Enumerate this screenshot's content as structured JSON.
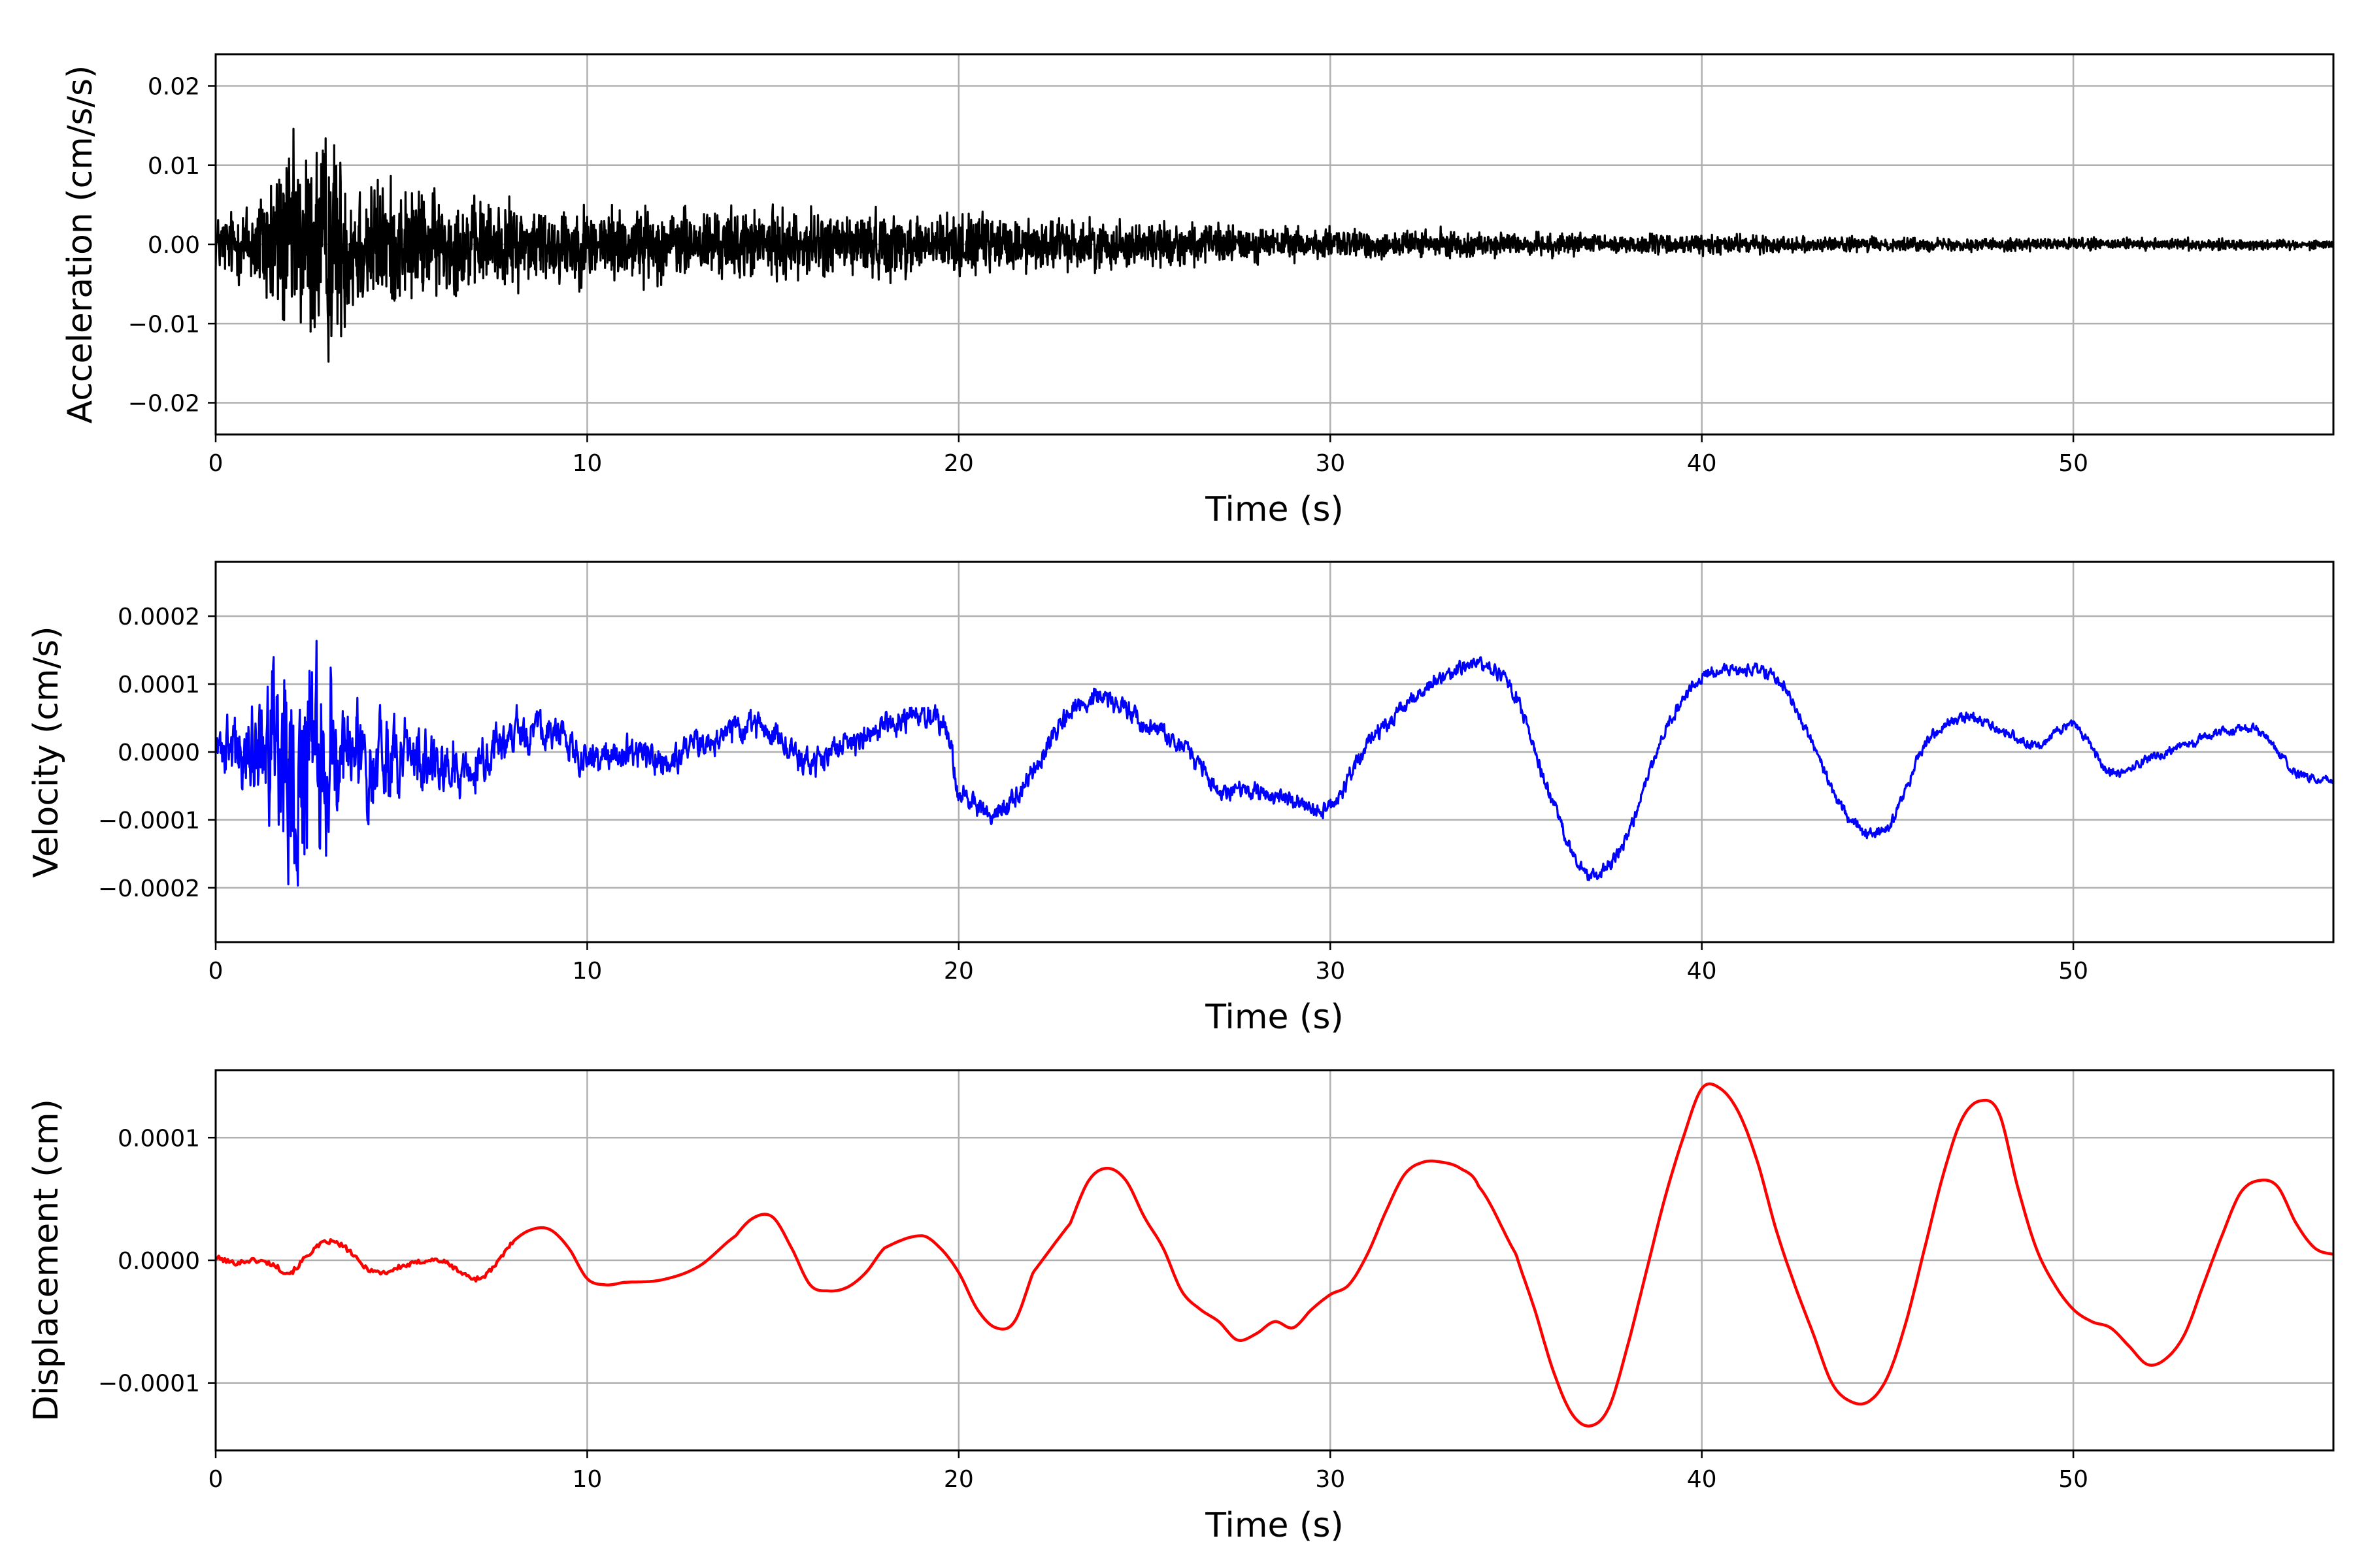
{
  "figure": {
    "background": "#ffffff",
    "grid_color": "#b0b0b0",
    "axis_color": "#000000"
  },
  "chart_data": [
    {
      "type": "line",
      "title": "",
      "xlabel": "Time (s)",
      "ylabel": "Acceleration (cm/s/s)",
      "xlim": [
        0,
        57
      ],
      "ylim": [
        -0.024,
        0.024
      ],
      "xticks": [
        0,
        10,
        20,
        30,
        40,
        50
      ],
      "xtick_labels": [
        "0",
        "10",
        "20",
        "30",
        "40",
        "50"
      ],
      "yticks": [
        -0.02,
        -0.01,
        0.0,
        0.01,
        0.02
      ],
      "ytick_labels": [
        "−0.02",
        "−0.01",
        "0.00",
        "0.01",
        "0.02"
      ],
      "grid": true,
      "series": [
        {
          "color": "#000000",
          "style": "noise",
          "envelope": {
            "x": [
              0,
              0.5,
              1,
              1.5,
              2,
              2.5,
              3,
              3.5,
              4,
              5,
              6,
              7,
              8,
              9,
              10,
              12,
              14,
              16,
              18,
              20,
              22,
              24,
              26,
              28,
              30,
              32,
              34,
              36,
              38,
              40,
              42,
              44,
              46,
              48,
              50,
              52,
              54,
              56,
              57
            ],
            "y": [
              0.005,
              0.006,
              0.008,
              0.013,
              0.016,
              0.017,
              0.02,
              0.014,
              0.012,
              0.01,
              0.0085,
              0.0075,
              0.007,
              0.0068,
              0.0065,
              0.006,
              0.0058,
              0.0055,
              0.0055,
              0.005,
              0.0045,
              0.004,
              0.0036,
              0.003,
              0.0026,
              0.0024,
              0.002,
              0.0018,
              0.0017,
              0.0016,
              0.0014,
              0.0012,
              0.0011,
              0.0011,
              0.001,
              0.001,
              0.0009,
              0.0008,
              0.0007
            ]
          }
        }
      ]
    },
    {
      "type": "line",
      "title": "",
      "xlabel": "Time (s)",
      "ylabel": "Velocity (cm/s)",
      "xlim": [
        0,
        57
      ],
      "ylim": [
        -0.00028,
        0.00028
      ],
      "xticks": [
        0,
        10,
        20,
        30,
        40,
        50
      ],
      "xtick_labels": [
        "0",
        "10",
        "20",
        "30",
        "40",
        "50"
      ],
      "yticks": [
        -0.0002,
        -0.0001,
        0.0,
        0.0001,
        0.0002
      ],
      "ytick_labels": [
        "−0.0002",
        "−0.0001",
        "0.0000",
        "0.0001",
        "0.0002"
      ],
      "grid": true,
      "series": [
        {
          "color": "#0000ff",
          "style": "trend+noise",
          "trend": {
            "x": [
              0,
              1,
              2,
              3,
              4,
              5,
              6,
              7,
              8,
              9,
              10,
              11,
              12,
              13,
              14,
              15,
              16,
              17,
              18,
              19,
              19.7,
              20,
              20.5,
              21,
              22,
              23,
              24,
              25,
              26,
              27,
              28,
              29,
              30,
              31,
              32,
              33,
              34,
              35,
              36,
              37,
              38,
              39,
              40,
              41,
              42,
              43,
              44,
              45,
              46,
              47,
              48,
              49,
              50,
              51,
              52,
              53,
              54,
              55,
              56,
              57
            ],
            "y": [
              0,
              0,
              0,
              0,
              -1e-05,
              0,
              -2e-05,
              -2e-05,
              2e-05,
              3e-05,
              -1e-05,
              0,
              -1e-05,
              1e-05,
              3e-05,
              3e-05,
              -2e-05,
              1e-05,
              4e-05,
              5e-05,
              3e-05,
              -6e-05,
              -8e-05,
              -9e-05,
              -3e-05,
              6e-05,
              8e-05,
              4e-05,
              1e-05,
              -5e-05,
              -6e-05,
              -7e-05,
              -8e-05,
              1e-05,
              7e-05,
              0.00011,
              0.00013,
              8e-05,
              -8e-05,
              -0.00018,
              -0.00012,
              3e-05,
              0.00011,
              0.00012,
              0.00011,
              1e-05,
              -0.0001,
              -0.00011,
              1e-05,
              5e-05,
              3e-05,
              1e-05,
              4e-05,
              -3e-05,
              -1e-05,
              1e-05,
              3e-05,
              3e-05,
              -3e-05,
              -4e-05
            ]
          },
          "noise_envelope": {
            "x": [
              0,
              1,
              1.5,
              2,
              2.5,
              3,
              3.5,
              4,
              5,
              6,
              7,
              8,
              10,
              15,
              20,
              25,
              30,
              40,
              50,
              57
            ],
            "y": [
              3e-05,
              6e-05,
              0.0001,
              0.00018,
              0.00016,
              0.00012,
              8e-05,
              6e-05,
              5e-05,
              4e-05,
              3e-05,
              2.5e-05,
              2e-05,
              1.8e-05,
              1.5e-05,
              1.2e-05,
              1e-05,
              8e-06,
              6e-06,
              5e-06
            ]
          }
        }
      ]
    },
    {
      "type": "line",
      "title": "",
      "xlabel": "Time (s)",
      "ylabel": "Displacement (cm)",
      "xlim": [
        0,
        57
      ],
      "ylim": [
        -0.000155,
        0.000155
      ],
      "xticks": [
        0,
        10,
        20,
        30,
        40,
        50
      ],
      "xtick_labels": [
        "0",
        "10",
        "20",
        "30",
        "40",
        "50"
      ],
      "yticks": [
        -0.0001,
        0.0,
        0.0001
      ],
      "ytick_labels": [
        "−0.0001",
        "0.0000",
        "0.0001"
      ],
      "grid": true,
      "series": [
        {
          "color": "#ff0000",
          "style": "smooth",
          "x": [
            0,
            0.5,
            1,
            1.5,
            2,
            2.5,
            3,
            3.5,
            4,
            4.5,
            5,
            6,
            7,
            7.5,
            8,
            8.5,
            9,
            9.5,
            10,
            10.5,
            11,
            12,
            13,
            14,
            14.5,
            15,
            15.5,
            16,
            16.5,
            17,
            17.5,
            18,
            19,
            19.5,
            20,
            20.5,
            21,
            21.5,
            22,
            23,
            23.5,
            24,
            24.5,
            25,
            25.5,
            26,
            26.5,
            27,
            27.5,
            28,
            28.5,
            29,
            29.5,
            30,
            30.5,
            31,
            31.5,
            32,
            32.5,
            33,
            33.5,
            34,
            35,
            35.5,
            36,
            36.5,
            37,
            37.5,
            38,
            38.5,
            39,
            39.5,
            40,
            40.5,
            41,
            41.5,
            42,
            42.5,
            43,
            43.5,
            44,
            44.5,
            45,
            45.5,
            46,
            46.5,
            47,
            47.5,
            48,
            48.5,
            49,
            49.5,
            50,
            50.5,
            51,
            51.5,
            52,
            52.5,
            53,
            53.5,
            54,
            54.5,
            55,
            55.5,
            56,
            56.5,
            57
          ],
          "y": [
            2e-06,
            -2e-06,
            0,
            -3e-06,
            -1e-05,
            5e-06,
            1.5e-05,
            1e-05,
            -5e-06,
            -1e-05,
            -5e-06,
            0,
            -1.5e-05,
            -5e-06,
            1.5e-05,
            2.5e-05,
            2.5e-05,
            1e-05,
            -1.5e-05,
            -2e-05,
            -1.8e-05,
            -1.6e-05,
            -5e-06,
            2e-05,
            3.5e-05,
            3.5e-05,
            1e-05,
            -2e-05,
            -2.5e-05,
            -2.2e-05,
            -1e-05,
            1e-05,
            2e-05,
            1e-05,
            -1e-05,
            -4e-05,
            -5.5e-05,
            -5e-05,
            -1e-05,
            3e-05,
            6.5e-05,
            7.5e-05,
            6.5e-05,
            3.5e-05,
            1e-05,
            -2.5e-05,
            -4e-05,
            -5e-05,
            -6.5e-05,
            -6e-05,
            -5e-05,
            -5.5e-05,
            -4e-05,
            -2.8e-05,
            -2e-05,
            5e-06,
            4e-05,
            7e-05,
            8e-05,
            8e-05,
            7.5e-05,
            6e-05,
            5e-06,
            -4e-05,
            -9e-05,
            -0.000125,
            -0.000135,
            -0.00012,
            -7e-05,
            -1e-05,
            5e-05,
            0.0001,
            0.00014,
            0.00014,
            0.00012,
            8e-05,
            2.5e-05,
            -2e-05,
            -6e-05,
            -0.0001,
            -0.000115,
            -0.000115,
            -9.5e-05,
            -5e-05,
            1e-05,
            7e-05,
            0.000115,
            0.00013,
            0.00012,
            6e-05,
            1e-05,
            -2e-05,
            -4e-05,
            -5e-05,
            -5.5e-05,
            -7e-05,
            -8.5e-05,
            -8e-05,
            -6e-05,
            -2e-05,
            2e-05,
            5.5e-05,
            6.5e-05,
            6e-05,
            3e-05,
            1e-05,
            5e-06
          ]
        }
      ]
    }
  ]
}
